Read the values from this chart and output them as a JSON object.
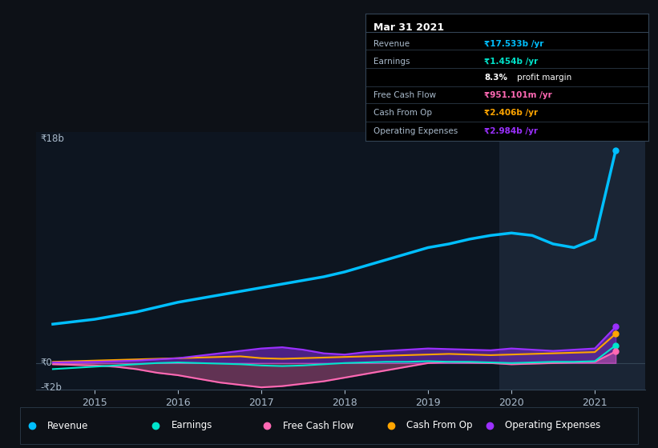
{
  "bg_color": "#0d1117",
  "plot_bg_color": "#0d1520",
  "highlight_bg": "#1a2535",
  "title": "Mar 31 2021",
  "y_label_top": "₹18b",
  "y_label_zero": "₹0",
  "y_label_neg": "-₹2b",
  "x_ticks": [
    2015,
    2016,
    2017,
    2018,
    2019,
    2020,
    2021
  ],
  "ylim": [
    -2200000000.0,
    19000000000.0
  ],
  "xlim_start": 2014.3,
  "xlim_end": 2021.6,
  "revenue_color": "#00bfff",
  "earnings_color": "#00e5cc",
  "fcf_color": "#ff69b4",
  "cashfromop_color": "#ffa500",
  "opex_color": "#9b30ff",
  "revenue": {
    "x": [
      2014.5,
      2014.75,
      2015.0,
      2015.25,
      2015.5,
      2015.75,
      2016.0,
      2016.25,
      2016.5,
      2016.75,
      2017.0,
      2017.25,
      2017.5,
      2017.75,
      2018.0,
      2018.25,
      2018.5,
      2018.75,
      2019.0,
      2019.25,
      2019.5,
      2019.75,
      2020.0,
      2020.25,
      2020.5,
      2020.75,
      2021.0,
      2021.25
    ],
    "y": [
      3200000000.0,
      3400000000.0,
      3600000000.0,
      3900000000.0,
      4200000000.0,
      4600000000.0,
      5000000000.0,
      5300000000.0,
      5600000000.0,
      5900000000.0,
      6200000000.0,
      6500000000.0,
      6800000000.0,
      7100000000.0,
      7500000000.0,
      8000000000.0,
      8500000000.0,
      9000000000.0,
      9500000000.0,
      9800000000.0,
      10200000000.0,
      10500000000.0,
      10700000000.0,
      10500000000.0,
      9800000000.0,
      9500000000.0,
      10200000000.0,
      17500000000.0
    ]
  },
  "earnings": {
    "x": [
      2014.5,
      2014.75,
      2015.0,
      2015.25,
      2015.5,
      2015.75,
      2016.0,
      2016.25,
      2016.5,
      2016.75,
      2017.0,
      2017.25,
      2017.5,
      2017.75,
      2018.0,
      2018.25,
      2018.5,
      2018.75,
      2019.0,
      2019.25,
      2019.5,
      2019.75,
      2020.0,
      2020.25,
      2020.5,
      2020.75,
      2021.0,
      2021.25
    ],
    "y": [
      -500000000.0,
      -400000000.0,
      -300000000.0,
      -200000000.0,
      -100000000.0,
      0.0,
      50000000.0,
      0.0,
      -50000000.0,
      -100000000.0,
      -200000000.0,
      -250000000.0,
      -200000000.0,
      -100000000.0,
      0.0,
      50000000.0,
      100000000.0,
      100000000.0,
      150000000.0,
      100000000.0,
      100000000.0,
      50000000.0,
      0.0,
      50000000.0,
      100000000.0,
      100000000.0,
      150000000.0,
      1454000000.0
    ]
  },
  "fcf": {
    "x": [
      2014.5,
      2014.75,
      2015.0,
      2015.25,
      2015.5,
      2015.75,
      2016.0,
      2016.25,
      2016.5,
      2016.75,
      2017.0,
      2017.25,
      2017.5,
      2017.75,
      2018.0,
      2018.25,
      2018.5,
      2018.75,
      2019.0,
      2019.25,
      2019.5,
      2019.75,
      2020.0,
      2020.25,
      2020.5,
      2020.75,
      2021.0,
      2021.25
    ],
    "y": [
      -100000000.0,
      -150000000.0,
      -200000000.0,
      -300000000.0,
      -500000000.0,
      -800000000.0,
      -1000000000.0,
      -1300000000.0,
      -1600000000.0,
      -1800000000.0,
      -2000000000.0,
      -1900000000.0,
      -1700000000.0,
      -1500000000.0,
      -1200000000.0,
      -900000000.0,
      -600000000.0,
      -300000000.0,
      0.0,
      100000000.0,
      50000000.0,
      0.0,
      -100000000.0,
      -50000000.0,
      0.0,
      50000000.0,
      100000000.0,
      951000000.0
    ]
  },
  "cashfromop": {
    "x": [
      2014.5,
      2014.75,
      2015.0,
      2015.25,
      2015.5,
      2015.75,
      2016.0,
      2016.25,
      2016.5,
      2016.75,
      2017.0,
      2017.25,
      2017.5,
      2017.75,
      2018.0,
      2018.25,
      2018.5,
      2018.75,
      2019.0,
      2019.25,
      2019.5,
      2019.75,
      2020.0,
      2020.25,
      2020.5,
      2020.75,
      2021.0,
      2021.25
    ],
    "y": [
      100000000.0,
      150000000.0,
      200000000.0,
      250000000.0,
      300000000.0,
      350000000.0,
      400000000.0,
      450000000.0,
      500000000.0,
      550000000.0,
      400000000.0,
      350000000.0,
      400000000.0,
      450000000.0,
      500000000.0,
      550000000.0,
      600000000.0,
      650000000.0,
      700000000.0,
      750000000.0,
      700000000.0,
      650000000.0,
      700000000.0,
      750000000.0,
      800000000.0,
      850000000.0,
      900000000.0,
      2406000000.0
    ]
  },
  "opex": {
    "x": [
      2014.5,
      2014.75,
      2015.0,
      2015.25,
      2015.5,
      2015.75,
      2016.0,
      2016.25,
      2016.5,
      2016.75,
      2017.0,
      2017.25,
      2017.5,
      2017.75,
      2018.0,
      2018.25,
      2018.5,
      2018.75,
      2019.0,
      2019.25,
      2019.5,
      2019.75,
      2020.0,
      2020.25,
      2020.5,
      2020.75,
      2021.0,
      2021.25
    ],
    "y": [
      50000000.0,
      80000000.0,
      100000000.0,
      150000000.0,
      200000000.0,
      300000000.0,
      400000000.0,
      600000000.0,
      800000000.0,
      1000000000.0,
      1200000000.0,
      1300000000.0,
      1100000000.0,
      800000000.0,
      700000000.0,
      900000000.0,
      1000000000.0,
      1100000000.0,
      1200000000.0,
      1150000000.0,
      1100000000.0,
      1050000000.0,
      1200000000.0,
      1100000000.0,
      1000000000.0,
      1100000000.0,
      1200000000.0,
      2984000000.0
    ]
  },
  "info_box": {
    "title": "Mar 31 2021",
    "rows": [
      {
        "label": "Revenue",
        "value": "₹17.533b /yr",
        "value_color": "#00bfff"
      },
      {
        "label": "Earnings",
        "value": "₹1.454b /yr",
        "value_color": "#00e5cc"
      },
      {
        "label": "",
        "value": "8.3% profit margin",
        "value_color": "#ffffff"
      },
      {
        "label": "Free Cash Flow",
        "value": "₹951.101m /yr",
        "value_color": "#ff69b4"
      },
      {
        "label": "Cash From Op",
        "value": "₹2.406b /yr",
        "value_color": "#ffa500"
      },
      {
        "label": "Operating Expenses",
        "value": "₹2.984b /yr",
        "value_color": "#9b30ff"
      }
    ]
  },
  "legend": [
    {
      "label": "Revenue",
      "color": "#00bfff"
    },
    {
      "label": "Earnings",
      "color": "#00e5cc"
    },
    {
      "label": "Free Cash Flow",
      "color": "#ff69b4"
    },
    {
      "label": "Cash From Op",
      "color": "#ffa500"
    },
    {
      "label": "Operating Expenses",
      "color": "#9b30ff"
    }
  ]
}
